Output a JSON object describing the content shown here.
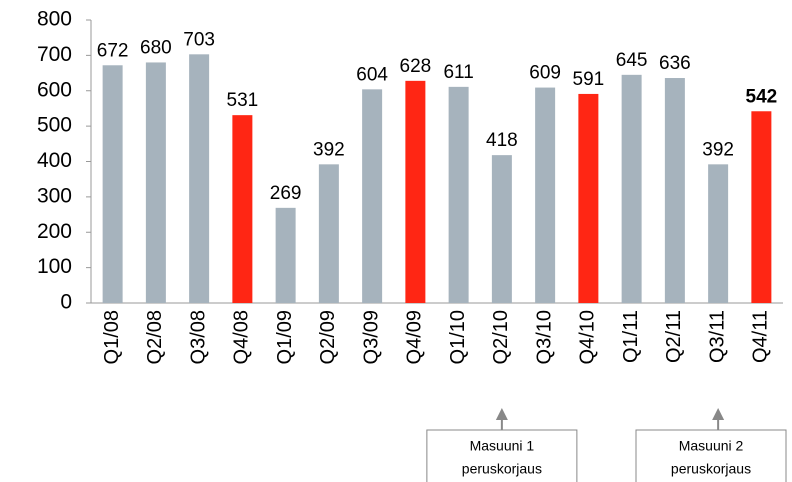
{
  "chart_data": {
    "type": "bar",
    "categories": [
      "Q1/08",
      "Q2/08",
      "Q3/08",
      "Q4/08",
      "Q1/09",
      "Q2/09",
      "Q3/09",
      "Q4/09",
      "Q1/10",
      "Q2/10",
      "Q3/10",
      "Q4/10",
      "Q1/11",
      "Q2/11",
      "Q3/11",
      "Q4/11"
    ],
    "values": [
      672,
      680,
      703,
      531,
      269,
      392,
      604,
      628,
      611,
      418,
      609,
      591,
      645,
      636,
      392,
      542
    ],
    "colors": [
      "#a6b3bd",
      "#a6b3bd",
      "#a6b3bd",
      "#ff2614",
      "#a6b3bd",
      "#a6b3bd",
      "#a6b3bd",
      "#ff2614",
      "#a6b3bd",
      "#a6b3bd",
      "#a6b3bd",
      "#ff2614",
      "#a6b3bd",
      "#a6b3bd",
      "#a6b3bd",
      "#ff2614"
    ],
    "bold_value_labels": [
      15
    ],
    "ylim": [
      0,
      800
    ],
    "yticks": [
      0,
      100,
      200,
      300,
      400,
      500,
      600,
      700,
      800
    ],
    "annotations": [
      {
        "category": "Q2/10",
        "lines": [
          "Masuuni 1",
          "peruskorjaus"
        ]
      },
      {
        "category": "Q3/11",
        "lines": [
          "Masuuni 2",
          "peruskorjaus"
        ]
      }
    ]
  }
}
